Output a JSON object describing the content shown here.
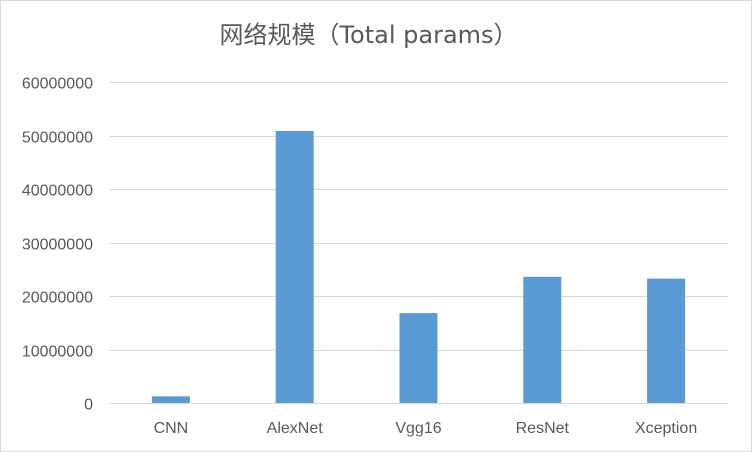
{
  "chart_data": {
    "type": "bar",
    "title": "网络规模（Total params）",
    "xlabel": "",
    "ylabel": "",
    "categories": [
      "CNN",
      "AlexNet",
      "Vgg16",
      "ResNet",
      "Xception"
    ],
    "values": [
      1250000,
      50844008,
      16812353,
      23587712,
      23256152
    ],
    "ylim": [
      0,
      60000000
    ],
    "yticks": [
      0,
      10000000,
      20000000,
      30000000,
      40000000,
      50000000,
      60000000
    ],
    "ytick_labels": [
      "0",
      "10000000",
      "20000000",
      "30000000",
      "40000000",
      "50000000",
      "60000000"
    ],
    "grid": true,
    "legend": "none",
    "colors": {
      "bar": "#5b9bd5",
      "grid": "#d9d9d9",
      "text": "#595959"
    }
  }
}
